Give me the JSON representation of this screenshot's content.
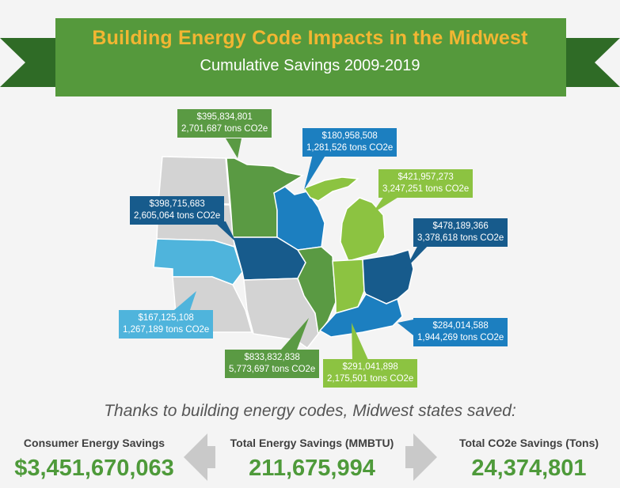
{
  "banner": {
    "title": "Building Energy Code Impacts in the Midwest",
    "subtitle": "Cumulative Savings 2009-2019"
  },
  "colors": {
    "banner_green": "#55993c",
    "banner_dark_green": "#2f6b26",
    "title_gold": "#f2b632",
    "state_dark_green": "#5a9a43",
    "state_light_green": "#8cc341",
    "state_dark_blue": "#175b8c",
    "state_mid_blue": "#1c7fc0",
    "state_light_blue": "#4fb4dc",
    "state_gray": "#d3d3d3",
    "stat_green": "#4e9a3a"
  },
  "callouts": [
    {
      "state": "Minnesota",
      "color": "dark-green",
      "savings": "$395,834,801",
      "co2": "2,701,687 tons CO2e"
    },
    {
      "state": "Wisconsin",
      "color": "mid-blue",
      "savings": "$180,958,508",
      "co2": "1,281,526 tons CO2e"
    },
    {
      "state": "Michigan",
      "color": "light-green",
      "savings": "$421,957,273",
      "co2": "3,247,251 tons CO2e"
    },
    {
      "state": "Iowa",
      "color": "dark-blue",
      "savings": "$398,715,683",
      "co2": "2,605,064 tons CO2e"
    },
    {
      "state": "Ohio",
      "color": "dark-blue",
      "savings": "$478,189,366",
      "co2": "3,378,618 tons CO2e"
    },
    {
      "state": "Nebraska",
      "color": "light-blue",
      "savings": "$167,125,108",
      "co2": "1,267,189 tons CO2e"
    },
    {
      "state": "Kentucky",
      "color": "mid-blue",
      "savings": "$284,014,588",
      "co2": "1,944,269 tons CO2e"
    },
    {
      "state": "Illinois",
      "color": "dark-green",
      "savings": "$833,832,838",
      "co2": "5,773,697 tons CO2e"
    },
    {
      "state": "Indiana",
      "color": "light-green",
      "savings": "$291,041,898",
      "co2": "2,175,501 tons CO2e"
    }
  ],
  "summary": {
    "intro": "Thanks to building energy codes, Midwest states saved:",
    "consumer_label": "Consumer Energy Savings",
    "consumer_value": "$3,451,670,063",
    "energy_label": "Total Energy Savings (MMBTU)",
    "energy_value": "211,675,994",
    "co2_label": "Total CO2e Savings (Tons)",
    "co2_value": "24,374,801"
  }
}
